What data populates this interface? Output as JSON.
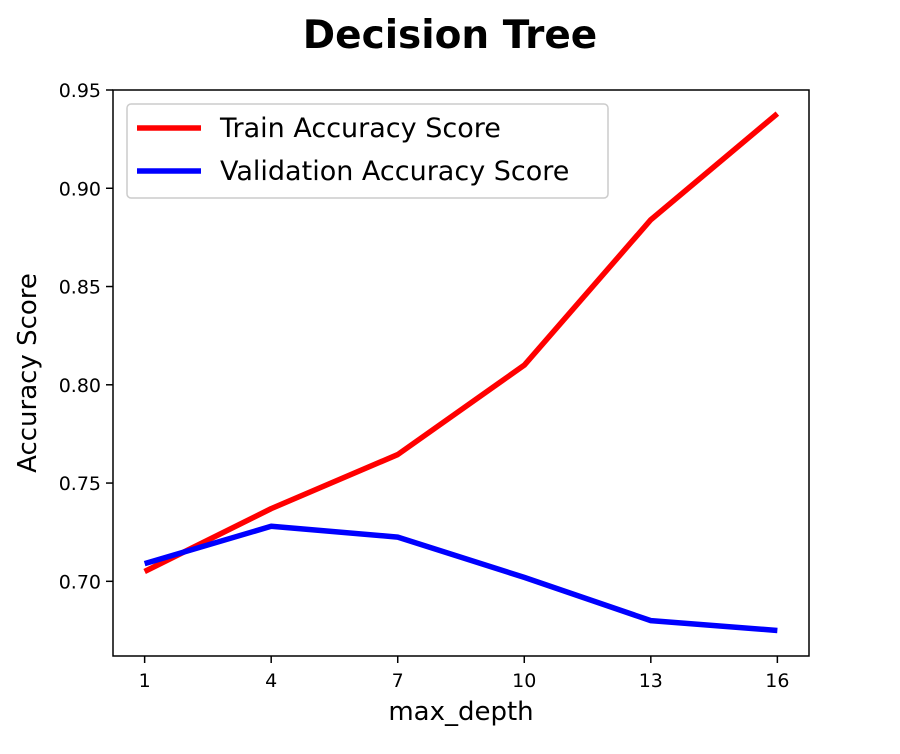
{
  "chart_data": {
    "type": "line",
    "title": "Decision Tree",
    "xlabel": "max_depth",
    "ylabel": "Accuracy Score",
    "x": [
      1,
      4,
      7,
      10,
      13,
      16
    ],
    "xticks": [
      "1",
      "4",
      "7",
      "10",
      "13",
      "16"
    ],
    "xlim": [
      0.25,
      16.75
    ],
    "yticks": [
      "0.70",
      "0.75",
      "0.80",
      "0.85",
      "0.90",
      "0.95"
    ],
    "ylim": [
      0.662,
      0.95
    ],
    "grid": false,
    "legend_position": "top-left",
    "series": [
      {
        "name": "Train Accuracy Score",
        "color": "#ff0000",
        "values": [
          0.705,
          0.737,
          0.7645,
          0.81,
          0.884,
          0.938
        ]
      },
      {
        "name": "Validation Accuracy Score",
        "color": "#0000ff",
        "values": [
          0.709,
          0.728,
          0.7225,
          0.702,
          0.68,
          0.675
        ]
      }
    ]
  }
}
